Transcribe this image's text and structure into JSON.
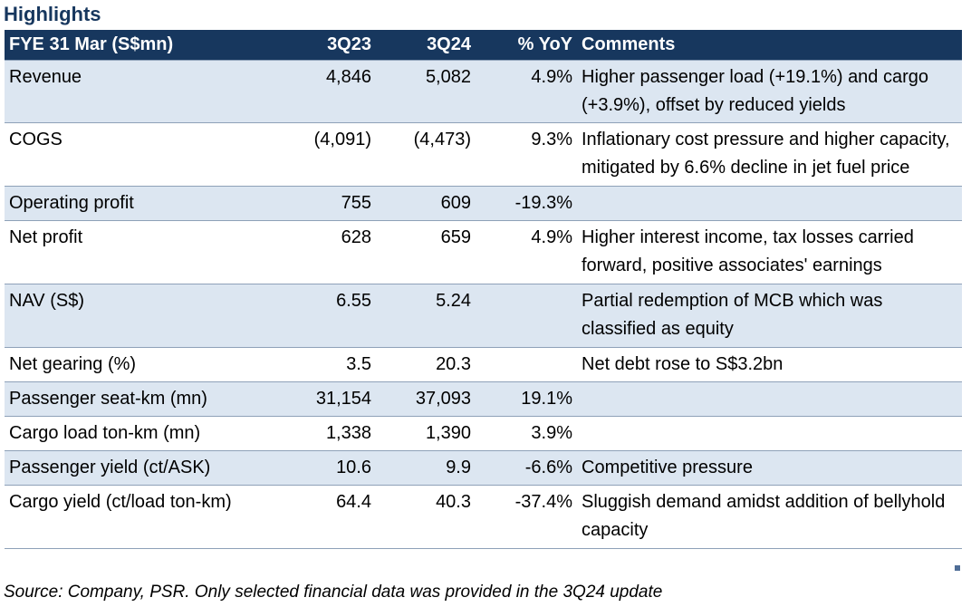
{
  "title": "Highlights",
  "table": {
    "headers": {
      "item": "FYE 31 Mar (S$mn)",
      "q23": "3Q23",
      "q24": "3Q24",
      "yoy": "% YoY",
      "comments": "Comments"
    },
    "rows": [
      {
        "item": "Revenue",
        "q23": "4,846",
        "q24": "5,082",
        "yoy": "4.9%",
        "comment": "Higher passenger load (+19.1%) and cargo (+3.9%), offset by reduced yields"
      },
      {
        "item": "COGS",
        "q23": "(4,091)",
        "q24": "(4,473)",
        "yoy": "9.3%",
        "comment": "Inflationary cost pressure and higher capacity, mitigated by 6.6% decline in jet fuel price"
      },
      {
        "item": "Operating profit",
        "q23": "755",
        "q24": "609",
        "yoy": "-19.3%",
        "comment": ""
      },
      {
        "item": "Net profit",
        "q23": "628",
        "q24": "659",
        "yoy": "4.9%",
        "comment": "Higher interest income, tax losses carried forward, positive associates' earnings"
      },
      {
        "item": "NAV (S$)",
        "q23": "6.55",
        "q24": "5.24",
        "yoy": "",
        "comment": "Partial redemption of MCB which was classified as equity"
      },
      {
        "item": "Net gearing (%)",
        "q23": "3.5",
        "q24": "20.3",
        "yoy": "",
        "comment": "Net debt rose to S$3.2bn"
      },
      {
        "item": "Passenger seat-km (mn)",
        "q23": "31,154",
        "q24": "37,093",
        "yoy": "19.1%",
        "comment": ""
      },
      {
        "item": "Cargo load ton-km (mn)",
        "q23": "1,338",
        "q24": "1,390",
        "yoy": "3.9%",
        "comment": ""
      },
      {
        "item": "Passenger yield (ct/ASK)",
        "q23": "10.6",
        "q24": "9.9",
        "yoy": "-6.6%",
        "comment": "Competitive pressure"
      },
      {
        "item": "Cargo yield (ct/load ton-km)",
        "q23": "64.4",
        "q24": "40.3",
        "yoy": "-37.4%",
        "comment": "Sluggish demand amidst addition of bellyhold capacity"
      }
    ]
  },
  "source": "Source: Company, PSR. Only selected financial data was provided in the 3Q24 update",
  "colors": {
    "header_bg": "#17375e",
    "title": "#17375e",
    "shaded_row": "#dce6f1"
  }
}
